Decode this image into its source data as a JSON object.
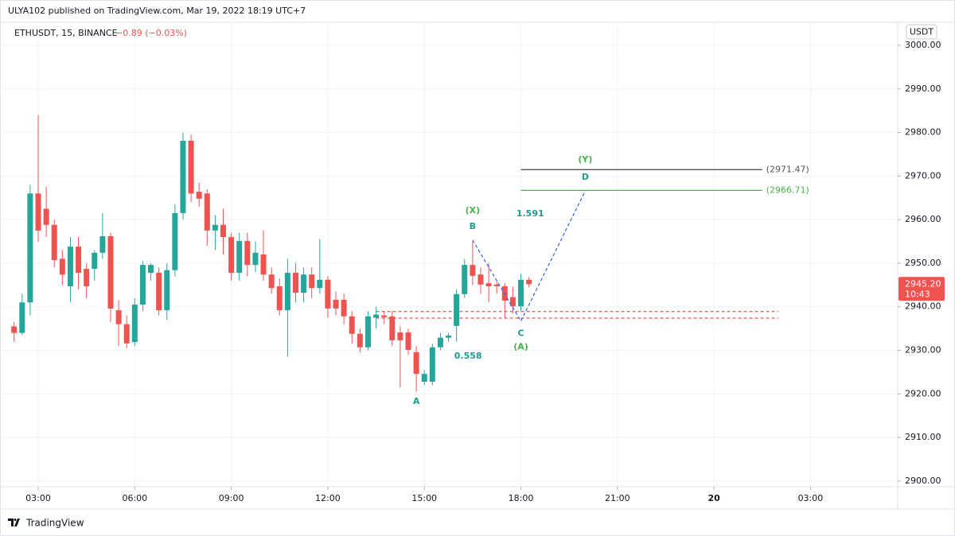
{
  "header": {
    "published": "ULYA102 published on TradingView.com, Mar 19, 2022 18:19 UTC+7",
    "symbol": "ETHUSDT, 15, BINANCE",
    "change": "−0.89 (−0.03%)",
    "currency": "USDT"
  },
  "footer": {
    "brand": "TradingView"
  },
  "chart_data": {
    "type": "candlestick",
    "up_color": "#26a69a",
    "down_color": "#ef5350",
    "grid": true,
    "xlim": [
      2.06,
      29.71
    ],
    "ylim": [
      2898.7,
      3005.3
    ],
    "xticks": [
      {
        "value": 3,
        "label": "03:00"
      },
      {
        "value": 6,
        "label": "06:00"
      },
      {
        "value": 9,
        "label": "09:00"
      },
      {
        "value": 12,
        "label": "12:00"
      },
      {
        "value": 15,
        "label": "15:00"
      },
      {
        "value": 18,
        "label": "18:00"
      },
      {
        "value": 21,
        "label": "21:00"
      },
      {
        "value": 24,
        "label": "20"
      },
      {
        "value": 27,
        "label": "03:00"
      }
    ],
    "yticks": [
      {
        "value": 2900,
        "label": "2900.00"
      },
      {
        "value": 2910,
        "label": "2910.00"
      },
      {
        "value": 2920,
        "label": "2920.00"
      },
      {
        "value": 2930,
        "label": "2930.00"
      },
      {
        "value": 2940,
        "label": "2940.00"
      },
      {
        "value": 2950,
        "label": "2950.00"
      },
      {
        "value": 2960,
        "label": "2960.00"
      },
      {
        "value": 2970,
        "label": "2970.00"
      },
      {
        "value": 2980,
        "label": "2980.00"
      },
      {
        "value": 2990,
        "label": "2990.00"
      },
      {
        "value": 3000,
        "label": "3000.00"
      }
    ],
    "x": [
      2.25,
      2.5,
      2.75,
      3,
      3.25,
      3.5,
      3.75,
      4,
      4.25,
      4.5,
      4.75,
      5,
      5.25,
      5.5,
      5.75,
      6,
      6.25,
      6.5,
      6.75,
      7,
      7.25,
      7.5,
      7.75,
      8,
      8.25,
      8.5,
      8.75,
      9,
      9.25,
      9.5,
      9.75,
      10,
      10.25,
      10.5,
      10.75,
      11,
      11.25,
      11.5,
      11.75,
      12,
      12.25,
      12.5,
      12.75,
      13,
      13.25,
      13.5,
      13.75,
      14,
      14.25,
      14.5,
      14.75,
      15,
      15.25,
      15.5,
      15.75,
      16,
      16.25,
      16.5,
      16.75,
      17,
      17.25,
      17.5,
      17.75,
      18,
      18.25
    ],
    "open": [
      2935.5,
      2934,
      2941,
      2966,
      2962.5,
      2958.8,
      2951,
      2944.7,
      2953.8,
      2948.7,
      2948.7,
      2952.4,
      2956.2,
      2939.2,
      2936,
      2931.9,
      2940.5,
      2947.8,
      2947.8,
      2939.2,
      2948.4,
      2961.5,
      2978.1,
      2966.4,
      2966,
      2957.5,
      2958.8,
      2956,
      2947.8,
      2955.1,
      2949.6,
      2952,
      2947.4,
      2944.7,
      2939.2,
      2947.8,
      2943.2,
      2947.4,
      2944.3,
      2946.2,
      2941.6,
      2941.6,
      2937.8,
      2933.8,
      2930.7,
      2937.5,
      2938,
      2937.8,
      2934.1,
      2934.1,
      2929.6,
      2922.8,
      2922.8,
      2930.7,
      2932.9,
      2935.6,
      2942.9,
      2949.6,
      2947.4,
      2945.4,
      2945.1,
      2944.7,
      2942.2,
      2940.1,
      2946.2
    ],
    "high": [
      2936.5,
      2943,
      2968,
      2984,
      2967.5,
      2960,
      2953,
      2956,
      2956,
      2950,
      2953,
      2961.5,
      2957,
      2941.5,
      2938,
      2942,
      2950.5,
      2950,
      2949,
      2950,
      2963.5,
      2980,
      2979.5,
      2968.5,
      2967,
      2961,
      2962.5,
      2957,
      2957,
      2957,
      2955,
      2957.5,
      2949,
      2946.5,
      2951,
      2950,
      2949,
      2949,
      2955.5,
      2947,
      2943.5,
      2943,
      2939,
      2935,
      2939,
      2940,
      2939,
      2939,
      2935.5,
      2935,
      2931,
      2925.5,
      2931.5,
      2934,
      2934,
      2944,
      2951,
      2955,
      2949,
      2950,
      2946,
      2945.5,
      2944.5,
      2947.5,
      2946.8
    ],
    "low": [
      2932,
      2933.5,
      2938,
      2955,
      2956,
      2949,
      2945,
      2941,
      2944,
      2942,
      2946,
      2951,
      2936.5,
      2931,
      2930.5,
      2931,
      2939,
      2946,
      2938,
      2937,
      2947,
      2960,
      2964,
      2963,
      2954,
      2953,
      2952,
      2946,
      2946,
      2947,
      2948,
      2946,
      2943,
      2938,
      2928.5,
      2941,
      2941,
      2942,
      2943,
      2937.5,
      2938,
      2936,
      2931.5,
      2929.5,
      2930,
      2935,
      2936,
      2931,
      2921.5,
      2929,
      2920.5,
      2922,
      2922,
      2930,
      2932,
      2932,
      2942,
      2945,
      2943,
      2941,
      2943,
      2937.5,
      2938.5,
      2939,
      2944.5
    ],
    "close": [
      2934,
      2941,
      2966,
      2957.5,
      2958.8,
      2950.7,
      2947.4,
      2953.8,
      2947.8,
      2944.7,
      2952.4,
      2956.2,
      2939.6,
      2936,
      2931.6,
      2940.5,
      2949.6,
      2949.6,
      2939.2,
      2948.4,
      2961.5,
      2978.1,
      2966,
      2964.8,
      2957.5,
      2958.8,
      2956,
      2947.8,
      2955.1,
      2949.6,
      2952.4,
      2947.4,
      2944.3,
      2939.2,
      2947.8,
      2943.2,
      2947.4,
      2944.3,
      2946.2,
      2939.6,
      2939.6,
      2937.8,
      2933.8,
      2930.7,
      2937.8,
      2938.2,
      2937.6,
      2932.3,
      2932.3,
      2930.1,
      2924.6,
      2924.6,
      2930.7,
      2932.9,
      2933.4,
      2942.9,
      2949.6,
      2947.1,
      2945.1,
      2944.7,
      2944.7,
      2941.4,
      2940.1,
      2946.2,
      2945.2
    ],
    "last_price": {
      "value": 2945.2,
      "label": "2945.20",
      "countdown": "10:43",
      "color": "#ef5350"
    },
    "levels": [
      {
        "value": 2971.47,
        "label": "(2971.47)",
        "color": "#555555",
        "from": 18,
        "to": 25.5,
        "style": "solid"
      },
      {
        "value": 2966.71,
        "label": "(2966.71)",
        "color": "#4caf50",
        "from": 18,
        "to": 25.5,
        "style": "solid"
      },
      {
        "value": 2938.9,
        "color": "#ef5350",
        "from": 13.5,
        "to": 26,
        "style": "dashed"
      },
      {
        "value": 2937.4,
        "color": "#ef5350",
        "from": 13.5,
        "to": 26,
        "style": "dashed"
      }
    ],
    "path": {
      "color": "#2962ff",
      "x": [
        16.5,
        18,
        20
      ],
      "y": [
        2955.3,
        2936.7,
        2966.6
      ]
    },
    "annotations": [
      {
        "text": "A",
        "x": 14.75,
        "y": 2918.2,
        "color": "#1e9e8a"
      },
      {
        "text": "B",
        "x": 16.5,
        "y": 2958.4,
        "color": "#1e9e8a"
      },
      {
        "text": "(X)",
        "x": 16.5,
        "y": 2962,
        "color": "#4caf50"
      },
      {
        "text": "C",
        "x": 18,
        "y": 2933.8,
        "color": "#1e9e8a"
      },
      {
        "text": "(A)",
        "x": 18,
        "y": 2930.7,
        "color": "#4caf50"
      },
      {
        "text": "D",
        "x": 20,
        "y": 2969.7,
        "color": "#1e9e8a"
      },
      {
        "text": "(Y)",
        "x": 20,
        "y": 2973.7,
        "color": "#4caf50"
      },
      {
        "text": "0.558",
        "x": 16.36,
        "y": 2928.6,
        "color": "#1e9e8a"
      },
      {
        "text": "1.591",
        "x": 18.29,
        "y": 2961.3,
        "color": "#1e9e8a"
      }
    ]
  }
}
